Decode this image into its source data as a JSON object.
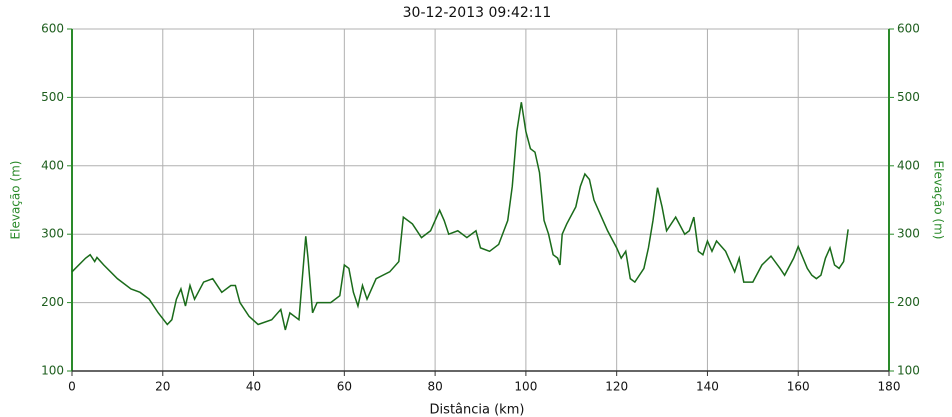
{
  "chart_data": {
    "type": "line",
    "title": "30-12-2013 09:42:11",
    "x_label": "Distância (km)",
    "y_label": "Elevação (m)",
    "y2_label": "Elevação (m)",
    "xlim": [
      0,
      180
    ],
    "xticks": [
      0,
      20,
      40,
      60,
      80,
      100,
      120,
      140,
      160,
      180
    ],
    "ylim": [
      100,
      600
    ],
    "yticks": [
      100,
      200,
      300,
      400,
      500,
      600
    ],
    "y2lim": [
      100,
      600
    ],
    "y2ticks": [
      100,
      200,
      300,
      400,
      500,
      600
    ],
    "grid": true,
    "x": [
      0,
      3,
      4,
      5,
      5.5,
      7,
      10,
      13,
      15,
      17,
      19,
      21,
      22,
      23,
      24,
      25,
      26,
      27,
      29,
      31,
      33,
      35,
      36,
      37,
      39,
      41,
      44,
      46,
      47,
      48,
      50,
      51.5,
      52,
      53,
      54,
      57,
      59,
      60,
      61,
      62,
      63,
      64,
      65,
      67,
      70,
      72,
      73,
      75,
      77,
      79,
      81,
      82,
      83,
      85,
      87,
      89,
      90,
      92,
      94,
      96,
      97,
      98,
      99,
      100,
      101,
      102,
      103,
      104,
      105,
      106,
      107,
      107.5,
      108,
      109,
      111,
      112,
      113,
      114,
      115,
      117,
      118,
      120,
      121,
      122,
      123,
      124,
      126,
      127,
      128,
      129,
      130,
      131,
      133,
      135,
      136,
      137,
      138,
      139,
      140,
      141,
      142,
      144,
      146,
      147,
      148,
      150,
      152,
      154,
      156,
      157,
      159,
      160,
      162,
      163,
      164,
      165,
      166,
      167,
      168,
      169,
      170,
      171
    ],
    "series": [
      {
        "name": "Elevação",
        "color": "#1a6b1a",
        "values": [
          245,
          265,
          270,
          260,
          266,
          255,
          235,
          220,
          215,
          205,
          185,
          168,
          175,
          205,
          220,
          195,
          225,
          205,
          230,
          235,
          215,
          225,
          225,
          200,
          180,
          168,
          175,
          190,
          160,
          185,
          175,
          297,
          265,
          185,
          200,
          200,
          210,
          255,
          250,
          215,
          195,
          225,
          205,
          235,
          245,
          260,
          325,
          315,
          295,
          305,
          335,
          320,
          300,
          305,
          295,
          305,
          280,
          275,
          285,
          320,
          370,
          450,
          493,
          450,
          425,
          420,
          390,
          320,
          300,
          270,
          265,
          255,
          300,
          315,
          340,
          370,
          388,
          380,
          350,
          320,
          305,
          280,
          265,
          275,
          235,
          230,
          250,
          280,
          320,
          368,
          340,
          305,
          325,
          300,
          305,
          325,
          275,
          270,
          290,
          275,
          290,
          275,
          245,
          265,
          230,
          230,
          255,
          268,
          250,
          240,
          265,
          282,
          250,
          240,
          235,
          240,
          265,
          280,
          255,
          250,
          260,
          307
        ]
      }
    ]
  }
}
